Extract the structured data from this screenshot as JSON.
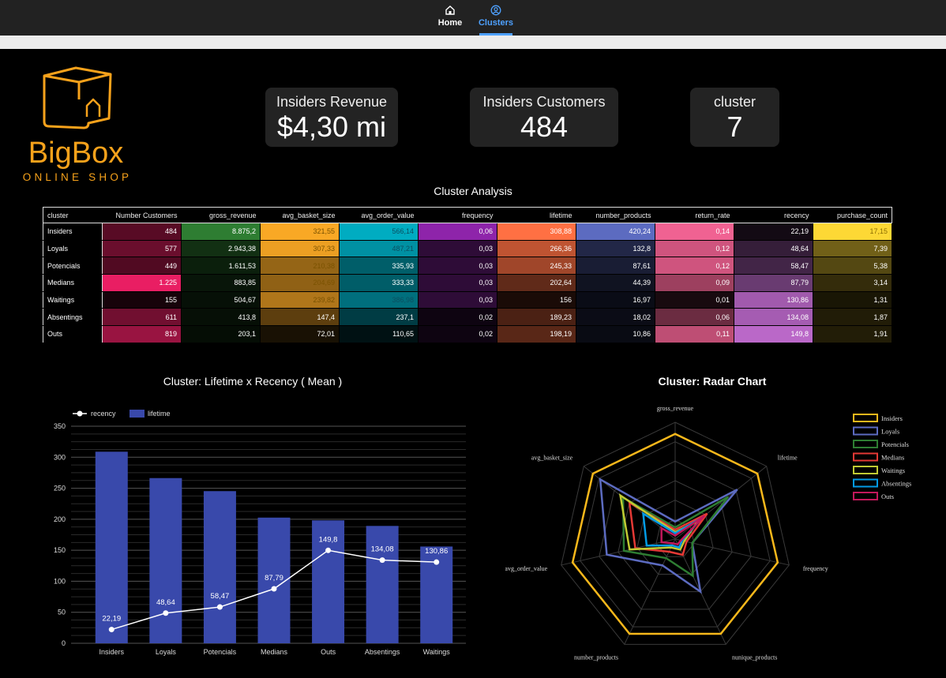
{
  "nav": {
    "items": [
      {
        "label": "Home",
        "icon": "home-icon"
      },
      {
        "label": "Clusters",
        "icon": "user-circle-icon"
      }
    ]
  },
  "logo": {
    "name": "BigBox",
    "tagline": "ONLINE SHOP",
    "color": "#f7a21b"
  },
  "kpis": [
    {
      "label": "Insiders Revenue",
      "value": "$4,30 mi"
    },
    {
      "label": "Insiders Customers",
      "value": "484"
    },
    {
      "label": "cluster",
      "value": "7"
    }
  ],
  "table": {
    "title": "Cluster Analysis",
    "columns": [
      "cluster",
      "Number Customers",
      "gross_revenue",
      "avg_basket_size",
      "avg_order_value",
      "frequency",
      "lifetime",
      "number_products",
      "return_rate",
      "recency",
      "purchase_count"
    ],
    "rows": [
      [
        "Insiders",
        "484",
        "8.875,2",
        "321,55",
        "566,14",
        "0,06",
        "308,88",
        "420,24",
        "0,14",
        "22,19",
        "17,15"
      ],
      [
        "Loyals",
        "577",
        "2.943,38",
        "307,33",
        "487,21",
        "0,03",
        "266,36",
        "132,8",
        "0,12",
        "48,64",
        "7,39"
      ],
      [
        "Potencials",
        "449",
        "1.611,53",
        "210,38",
        "335,93",
        "0,03",
        "245,33",
        "87,61",
        "0,12",
        "58,47",
        "5,38"
      ],
      [
        "Medians",
        "1.225",
        "883,85",
        "204,69",
        "333,33",
        "0,03",
        "202,64",
        "44,39",
        "0,09",
        "87,79",
        "3,14"
      ],
      [
        "Waitings",
        "155",
        "504,67",
        "239,82",
        "386,98",
        "0,03",
        "156",
        "16,97",
        "0,01",
        "130,86",
        "1,31"
      ],
      [
        "Absentings",
        "611",
        "413,8",
        "147,4",
        "237,1",
        "0,02",
        "189,23",
        "18,02",
        "0,06",
        "134,08",
        "1,87"
      ],
      [
        "Outs",
        "819",
        "203,1",
        "72,01",
        "110,65",
        "0,02",
        "198,19",
        "10,86",
        "0,11",
        "149,8",
        "1,91"
      ]
    ],
    "heat_colors": [
      [
        "#e91e63",
        "#2e7d32",
        "#f9a825",
        "#00acc1",
        "#8e24aa",
        "#ff7043",
        "#5c6bc0",
        "#f06292",
        "#ba68c8",
        "#fdd835"
      ]
    ]
  },
  "chart_data": [
    {
      "type": "bar",
      "title": "Cluster: Lifetime x Recency ( Mean )",
      "categories": [
        "Insiders",
        "Loyals",
        "Potencials",
        "Medians",
        "Outs",
        "Absentings",
        "Waitings"
      ],
      "series": [
        {
          "name": "lifetime",
          "kind": "bar",
          "color": "#3949ab",
          "values": [
            308.88,
            266.36,
            245.33,
            202.64,
            198.19,
            189.23,
            156
          ]
        },
        {
          "name": "recency",
          "kind": "line",
          "color": "#ffffff",
          "values": [
            22.19,
            48.64,
            58.47,
            87.79,
            149.8,
            134.08,
            130.86
          ],
          "labels": [
            "22,19",
            "48,64",
            "58,47",
            "87,79",
            "149,8",
            "134,08",
            "130,86"
          ]
        }
      ],
      "yticks": [
        0,
        50,
        100,
        150,
        200,
        250,
        300,
        350
      ],
      "ylim": [
        0,
        350
      ],
      "legend": "top-left"
    },
    {
      "type": "radar",
      "title": "Cluster: Radar Chart",
      "axes": [
        "gross_revenue",
        "lifetime",
        "frequency",
        "nunique_products",
        "number_products",
        "avg_order_value",
        "avg_basket_size"
      ],
      "series": [
        {
          "name": "Insiders",
          "color": "#f9b81b",
          "values": [
            0.9,
            0.9,
            0.9,
            0.9,
            0.9,
            0.9,
            0.9
          ]
        },
        {
          "name": "Loyals",
          "color": "#5c6bc0",
          "values": [
            0.15,
            0.68,
            0.15,
            0.5,
            0.25,
            0.6,
            0.82
          ]
        },
        {
          "name": "Potencials",
          "color": "#2e7d32",
          "values": [
            0.1,
            0.58,
            0.15,
            0.35,
            0.18,
            0.45,
            0.57
          ]
        },
        {
          "name": "Medians",
          "color": "#e53935",
          "values": [
            0.08,
            0.35,
            0.1,
            0.15,
            0.12,
            0.35,
            0.5
          ]
        },
        {
          "name": "Waitings",
          "color": "#c0ca33",
          "values": [
            0.06,
            0.25,
            0.08,
            0.1,
            0.08,
            0.4,
            0.6
          ]
        },
        {
          "name": "Absentings",
          "color": "#039be5",
          "values": [
            0.05,
            0.3,
            0.06,
            0.08,
            0.06,
            0.25,
            0.35
          ]
        },
        {
          "name": "Outs",
          "color": "#c2185b",
          "values": [
            0.03,
            0.32,
            0.05,
            0.05,
            0.04,
            0.12,
            0.15
          ]
        }
      ],
      "legend": "right"
    }
  ]
}
